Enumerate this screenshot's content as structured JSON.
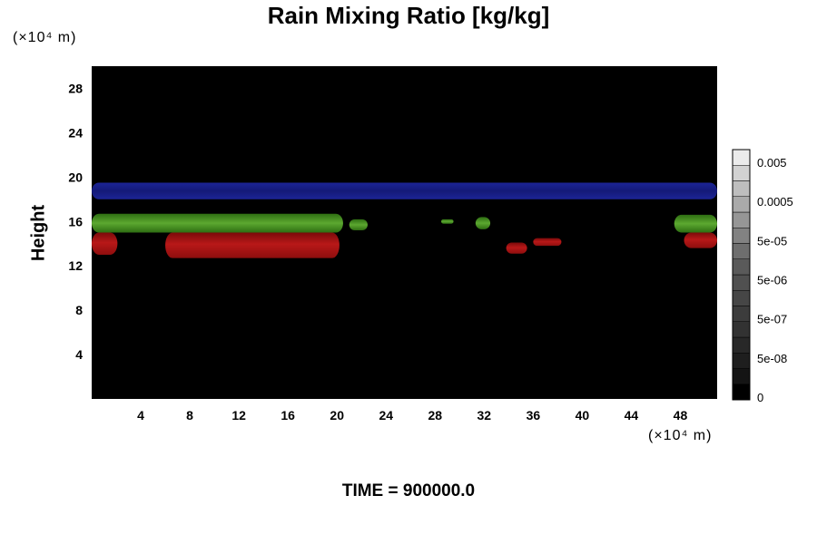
{
  "chart_data": {
    "type": "heatmap",
    "title": "Rain Mixing Ratio [kg/kg]",
    "ylabel": "Height",
    "xlabel": "",
    "y_unit_label": "(×10⁴ m)",
    "x_unit_label": "(×10⁴ m)",
    "footer": "TIME = 900000.0",
    "xlim": [
      0,
      51
    ],
    "ylim": [
      0,
      30
    ],
    "x_ticks": [
      "4",
      "8",
      "12",
      "16",
      "20",
      "24",
      "28",
      "32",
      "36",
      "40",
      "44",
      "48"
    ],
    "x_tick_values": [
      4,
      8,
      12,
      16,
      20,
      24,
      28,
      32,
      36,
      40,
      44,
      48
    ],
    "y_ticks": [
      "4",
      "8",
      "12",
      "16",
      "20",
      "24",
      "28"
    ],
    "y_tick_values": [
      4,
      8,
      12,
      16,
      20,
      24,
      28
    ],
    "background_color": "#000000",
    "colorbar": {
      "labels": [
        "0.005",
        "0.0005",
        "5e-05",
        "5e-06",
        "5e-07",
        "5e-08",
        "0"
      ],
      "levels": 16,
      "colors": [
        "#000000",
        "#141414",
        "#1e1e1e",
        "#282828",
        "#323232",
        "#3c3c3c",
        "#464646",
        "#505050",
        "#5a5a5a",
        "#6e6e6e",
        "#828282",
        "#969696",
        "#aaaaaa",
        "#bebebe",
        "#d2d2d2",
        "#ebebeb"
      ]
    },
    "regions": [
      {
        "name": "blue band",
        "color": "#1a1f8c",
        "x": [
          0,
          51
        ],
        "y": [
          18.0,
          19.5
        ]
      },
      {
        "name": "green band left",
        "color": "#3c8c1e",
        "x": [
          0,
          20.5
        ],
        "y": [
          15.0,
          16.7
        ]
      },
      {
        "name": "green blob",
        "color": "#3c8c1e",
        "x": [
          21.0,
          22.5
        ],
        "y": [
          15.2,
          16.2
        ]
      },
      {
        "name": "green blob",
        "color": "#3c8c1e",
        "x": [
          28.5,
          29.5
        ],
        "y": [
          15.8,
          16.2
        ]
      },
      {
        "name": "green blob",
        "color": "#3c8c1e",
        "x": [
          31.3,
          32.5
        ],
        "y": [
          15.3,
          16.4
        ]
      },
      {
        "name": "green band right",
        "color": "#3c8c1e",
        "x": [
          47.5,
          51
        ],
        "y": [
          15.0,
          16.6
        ]
      },
      {
        "name": "red region left",
        "color": "#a31010",
        "x": [
          0,
          2.1
        ],
        "y": [
          13.0,
          15.0
        ]
      },
      {
        "name": "red region main",
        "color": "#a31010",
        "x": [
          6.0,
          20.2
        ],
        "y": [
          12.7,
          15.0
        ]
      },
      {
        "name": "red blob",
        "color": "#a31010",
        "x": [
          33.8,
          35.5
        ],
        "y": [
          13.1,
          14.1
        ]
      },
      {
        "name": "red blob",
        "color": "#a31010",
        "x": [
          36.0,
          38.3
        ],
        "y": [
          13.8,
          14.5
        ]
      },
      {
        "name": "red region right",
        "color": "#a31010",
        "x": [
          48.3,
          51
        ],
        "y": [
          13.6,
          15.0
        ]
      }
    ]
  }
}
